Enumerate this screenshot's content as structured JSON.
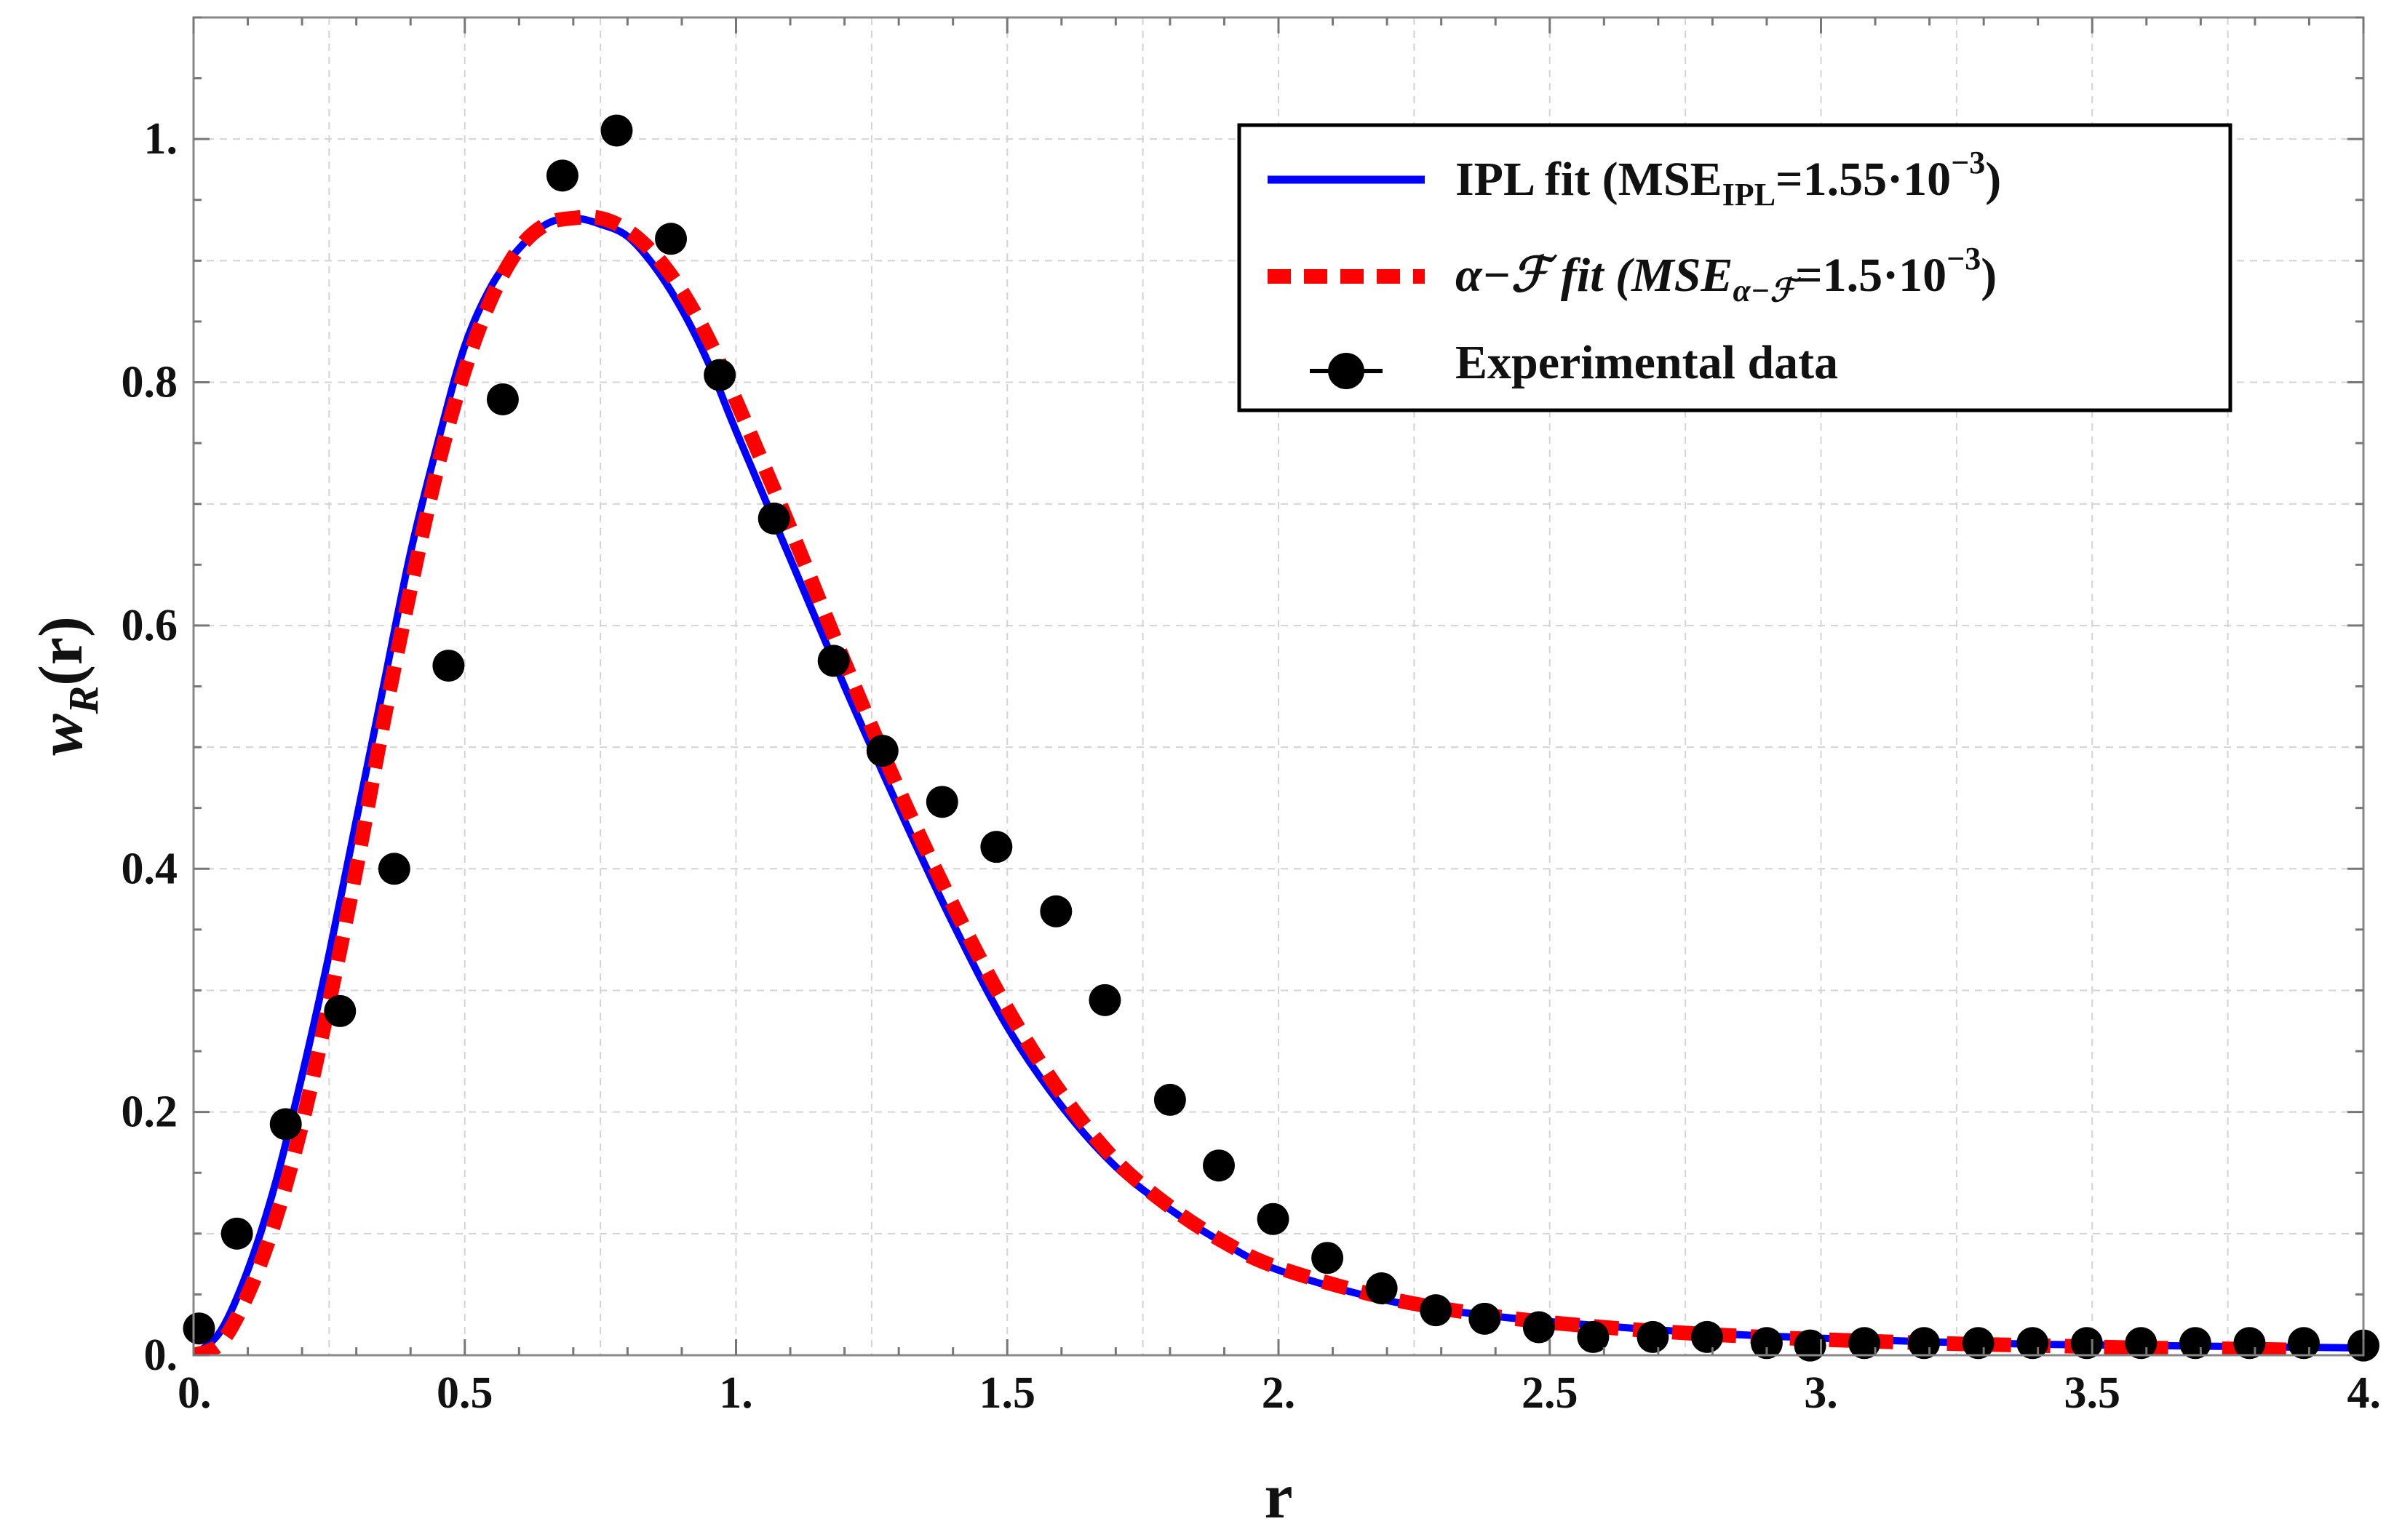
{
  "chart_data": {
    "type": "line",
    "title": "",
    "xlabel": "r",
    "ylabel": {
      "base": "w",
      "subscript": "R",
      "suffix": "(r)"
    },
    "xlim": [
      0,
      4
    ],
    "ylim": [
      0,
      1.1
    ],
    "x_ticks": [
      {
        "value": 0,
        "label": "0."
      },
      {
        "value": 0.5,
        "label": "0.5"
      },
      {
        "value": 1,
        "label": "1."
      },
      {
        "value": 1.5,
        "label": "1.5"
      },
      {
        "value": 2,
        "label": "2."
      },
      {
        "value": 2.5,
        "label": "2.5"
      },
      {
        "value": 3,
        "label": "3."
      },
      {
        "value": 3.5,
        "label": "3.5"
      },
      {
        "value": 4,
        "label": "4."
      }
    ],
    "y_ticks": [
      {
        "value": 0,
        "label": "0."
      },
      {
        "value": 0.2,
        "label": "0.2"
      },
      {
        "value": 0.4,
        "label": "0.4"
      },
      {
        "value": 0.6,
        "label": "0.6"
      },
      {
        "value": 0.8,
        "label": "0.8"
      },
      {
        "value": 1,
        "label": "1."
      }
    ],
    "grid": true,
    "legend_position": "top-right",
    "series": [
      {
        "name": "IPL fit",
        "kind": "line",
        "style": "solid",
        "color": "#0000ff",
        "legend": {
          "text": "IPL fit (MSE",
          "sub": "IPL",
          "mid": "=1.55·10",
          "sup": "−3",
          "end": ")"
        },
        "x": [
          0,
          0.05,
          0.1,
          0.15,
          0.2,
          0.25,
          0.3,
          0.35,
          0.4,
          0.45,
          0.5,
          0.55,
          0.6,
          0.65,
          0.7,
          0.75,
          0.8,
          0.85,
          0.9,
          0.95,
          1.0,
          1.1,
          1.2,
          1.3,
          1.4,
          1.5,
          1.6,
          1.7,
          1.8,
          1.9,
          2.0,
          2.2,
          2.4,
          2.6,
          2.8,
          3.0,
          3.2,
          3.4,
          3.6,
          3.8,
          4.0
        ],
        "y": [
          0.0,
          0.02,
          0.07,
          0.14,
          0.23,
          0.33,
          0.44,
          0.55,
          0.66,
          0.75,
          0.83,
          0.88,
          0.91,
          0.93,
          0.935,
          0.93,
          0.92,
          0.895,
          0.86,
          0.815,
          0.76,
          0.655,
          0.55,
          0.45,
          0.355,
          0.27,
          0.205,
          0.155,
          0.12,
          0.092,
          0.07,
          0.045,
          0.032,
          0.024,
          0.018,
          0.014,
          0.011,
          0.009,
          0.008,
          0.007,
          0.006
        ]
      },
      {
        "name": "α−ℱ fit",
        "kind": "line",
        "style": "dashed",
        "color": "#ff0000",
        "legend": {
          "text": "α−ℱ fit (MSE",
          "sub": "α−ℱ",
          "mid": "=1.5·10",
          "sup": "−3",
          "end": ")"
        },
        "x": [
          0,
          0.05,
          0.1,
          0.15,
          0.2,
          0.25,
          0.3,
          0.35,
          0.4,
          0.45,
          0.5,
          0.55,
          0.6,
          0.65,
          0.7,
          0.75,
          0.8,
          0.85,
          0.9,
          0.95,
          1.0,
          1.1,
          1.2,
          1.3,
          1.4,
          1.5,
          1.6,
          1.7,
          1.8,
          1.9,
          2.0,
          2.2,
          2.4,
          2.6,
          2.8,
          3.0,
          3.2,
          3.4,
          3.6,
          3.8,
          3.9
        ],
        "y": [
          0.0,
          0.01,
          0.05,
          0.11,
          0.19,
          0.29,
          0.4,
          0.52,
          0.63,
          0.73,
          0.81,
          0.87,
          0.91,
          0.93,
          0.935,
          0.935,
          0.925,
          0.905,
          0.875,
          0.835,
          0.785,
          0.68,
          0.57,
          0.465,
          0.37,
          0.285,
          0.215,
          0.16,
          0.122,
          0.093,
          0.072,
          0.047,
          0.032,
          0.023,
          0.017,
          0.013,
          0.01,
          0.008,
          0.006,
          0.005,
          0.004
        ]
      },
      {
        "name": "Experimental data",
        "kind": "scatter",
        "color": "#000000",
        "legend": {
          "text": "Experimental data"
        },
        "x": [
          0.01,
          0.08,
          0.17,
          0.27,
          0.37,
          0.47,
          0.57,
          0.68,
          0.78,
          0.88,
          0.97,
          1.07,
          1.18,
          1.27,
          1.38,
          1.48,
          1.59,
          1.68,
          1.8,
          1.89,
          1.99,
          2.09,
          2.19,
          2.29,
          2.38,
          2.48,
          2.58,
          2.69,
          2.79,
          2.9,
          2.98,
          3.08,
          3.19,
          3.29,
          3.39,
          3.49,
          3.59,
          3.69,
          3.79,
          3.89,
          4.0
        ],
        "y": [
          0.022,
          0.1,
          0.19,
          0.283,
          0.4,
          0.567,
          0.786,
          0.97,
          1.007,
          0.918,
          0.806,
          0.688,
          0.571,
          0.497,
          0.455,
          0.418,
          0.365,
          0.292,
          0.21,
          0.156,
          0.112,
          0.08,
          0.055,
          0.037,
          0.03,
          0.023,
          0.015,
          0.015,
          0.015,
          0.01,
          0.008,
          0.01,
          0.01,
          0.01,
          0.01,
          0.01,
          0.01,
          0.01,
          0.01,
          0.01,
          0.008
        ]
      }
    ]
  }
}
